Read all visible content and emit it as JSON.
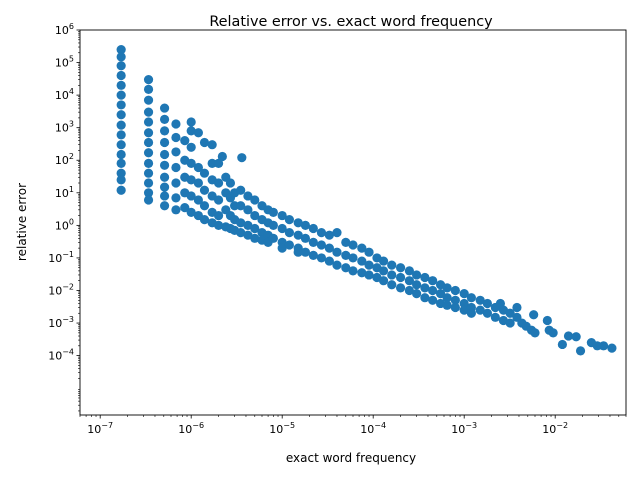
{
  "chart_data": {
    "type": "scatter",
    "title": "Relative error vs. exact word frequency",
    "xlabel": "exact word frequency",
    "ylabel": "relative error",
    "xscale": "log",
    "yscale": "log",
    "xlim": [
      6e-08,
      0.06
    ],
    "ylim": [
      1.5e-06,
      1000000.0
    ],
    "grid": false,
    "marker_color": "#1f77b4",
    "x_ticks": [
      {
        "value": 1e-07,
        "base": "10",
        "exp": "−7"
      },
      {
        "value": 1e-06,
        "base": "10",
        "exp": "−6"
      },
      {
        "value": 1e-05,
        "base": "10",
        "exp": "−5"
      },
      {
        "value": 0.0001,
        "base": "10",
        "exp": "−4"
      },
      {
        "value": 0.001,
        "base": "10",
        "exp": "−3"
      },
      {
        "value": 0.01,
        "base": "10",
        "exp": "−2"
      }
    ],
    "y_ticks": [
      {
        "value": 0.0001,
        "base": "10",
        "exp": "−4"
      },
      {
        "value": 0.001,
        "base": "10",
        "exp": "−3"
      },
      {
        "value": 0.01,
        "base": "10",
        "exp": "−2"
      },
      {
        "value": 0.1,
        "base": "10",
        "exp": "−1"
      },
      {
        "value": 1.0,
        "base": "10",
        "exp": "0"
      },
      {
        "value": 10.0,
        "base": "10",
        "exp": "1"
      },
      {
        "value": 100.0,
        "base": "10",
        "exp": "2"
      },
      {
        "value": 1000.0,
        "base": "10",
        "exp": "3"
      },
      {
        "value": 10000.0,
        "base": "10",
        "exp": "4"
      },
      {
        "value": 100000.0,
        "base": "10",
        "exp": "5"
      },
      {
        "value": 1000000.0,
        "base": "10",
        "exp": "6"
      }
    ],
    "points": [
      [
        1.7e-07,
        250000.0
      ],
      [
        1.7e-07,
        150000.0
      ],
      [
        1.7e-07,
        80000.0
      ],
      [
        1.7e-07,
        40000.0
      ],
      [
        1.7e-07,
        20000.0
      ],
      [
        1.7e-07,
        10000.0
      ],
      [
        1.7e-07,
        5000.0
      ],
      [
        1.7e-07,
        2500.0
      ],
      [
        1.7e-07,
        1200.0
      ],
      [
        1.7e-07,
        600
      ],
      [
        1.7e-07,
        300
      ],
      [
        1.7e-07,
        150
      ],
      [
        1.7e-07,
        80
      ],
      [
        1.7e-07,
        40
      ],
      [
        1.7e-07,
        25
      ],
      [
        1.7e-07,
        12
      ],
      [
        3.4e-07,
        30000.0
      ],
      [
        3.4e-07,
        15000.0
      ],
      [
        3.4e-07,
        7000.0
      ],
      [
        3.4e-07,
        3000.0
      ],
      [
        3.4e-07,
        1500.0
      ],
      [
        3.4e-07,
        700
      ],
      [
        3.4e-07,
        350
      ],
      [
        3.4e-07,
        170
      ],
      [
        3.4e-07,
        80
      ],
      [
        3.4e-07,
        40
      ],
      [
        3.4e-07,
        20
      ],
      [
        3.4e-07,
        10
      ],
      [
        3.4e-07,
        6
      ],
      [
        5.1e-07,
        4000.0
      ],
      [
        5.1e-07,
        1800.0
      ],
      [
        5.1e-07,
        800
      ],
      [
        5.1e-07,
        350
      ],
      [
        5.1e-07,
        150
      ],
      [
        5.1e-07,
        70
      ],
      [
        5.1e-07,
        30
      ],
      [
        5.1e-07,
        15
      ],
      [
        5.1e-07,
        8
      ],
      [
        5.1e-07,
        4
      ],
      [
        6.8e-07,
        1300.0
      ],
      [
        6.8e-07,
        500
      ],
      [
        6.8e-07,
        180
      ],
      [
        6.8e-07,
        60
      ],
      [
        6.8e-07,
        20
      ],
      [
        6.8e-07,
        7
      ],
      [
        6.8e-07,
        3
      ],
      [
        8.5e-07,
        400
      ],
      [
        8.5e-07,
        100
      ],
      [
        8.5e-07,
        30
      ],
      [
        8.5e-07,
        10
      ],
      [
        8.5e-07,
        3.5
      ],
      [
        1e-06,
        1500.0
      ],
      [
        1e-06,
        800
      ],
      [
        1e-06,
        250
      ],
      [
        1e-06,
        80
      ],
      [
        1e-06,
        25
      ],
      [
        1e-06,
        8
      ],
      [
        1e-06,
        2.5
      ],
      [
        1.2e-06,
        700
      ],
      [
        1.2e-06,
        60
      ],
      [
        1.2e-06,
        20
      ],
      [
        1.2e-06,
        6
      ],
      [
        1.2e-06,
        2
      ],
      [
        1.4e-06,
        350
      ],
      [
        1.4e-06,
        40
      ],
      [
        1.4e-06,
        12
      ],
      [
        1.4e-06,
        4
      ],
      [
        1.4e-06,
        1.5
      ],
      [
        1.7e-06,
        300
      ],
      [
        1.7e-06,
        80
      ],
      [
        1.7e-06,
        25
      ],
      [
        1.7e-06,
        8
      ],
      [
        1.7e-06,
        2.5
      ],
      [
        1.7e-06,
        1.2
      ],
      [
        2e-06,
        80
      ],
      [
        2e-06,
        20
      ],
      [
        2e-06,
        6
      ],
      [
        2e-06,
        2
      ],
      [
        2e-06,
        1
      ],
      [
        2.2e-06,
        130
      ],
      [
        2.4e-06,
        30
      ],
      [
        2.4e-06,
        10
      ],
      [
        2.4e-06,
        3
      ],
      [
        2.4e-06,
        0.9
      ],
      [
        2.7e-06,
        20
      ],
      [
        2.7e-06,
        7
      ],
      [
        2.7e-06,
        2
      ],
      [
        2.7e-06,
        0.8
      ],
      [
        3e-06,
        10
      ],
      [
        3e-06,
        4
      ],
      [
        3e-06,
        1.5
      ],
      [
        3e-06,
        0.7
      ],
      [
        3.6e-06,
        120
      ],
      [
        3.5e-06,
        12
      ],
      [
        3.5e-06,
        4
      ],
      [
        3.5e-06,
        1.2
      ],
      [
        3.5e-06,
        0.6
      ],
      [
        4.2e-06,
        8
      ],
      [
        4.2e-06,
        3
      ],
      [
        4.2e-06,
        1
      ],
      [
        4.2e-06,
        0.5
      ],
      [
        5e-06,
        6
      ],
      [
        5e-06,
        2
      ],
      [
        5e-06,
        0.8
      ],
      [
        5e-06,
        0.4
      ],
      [
        6e-06,
        4
      ],
      [
        6e-06,
        1.5
      ],
      [
        6e-06,
        0.6
      ],
      [
        6e-06,
        0.35
      ],
      [
        7e-06,
        3
      ],
      [
        7e-06,
        1.2
      ],
      [
        7e-06,
        0.5
      ],
      [
        7e-06,
        0.3
      ],
      [
        8e-06,
        2.5
      ],
      [
        8e-06,
        1
      ],
      [
        8e-06,
        0.4
      ],
      [
        1e-05,
        2
      ],
      [
        1e-05,
        0.8
      ],
      [
        1e-05,
        0.3
      ],
      [
        1e-05,
        0.2
      ],
      [
        1.2e-05,
        1.5
      ],
      [
        1.2e-05,
        0.6
      ],
      [
        1.2e-05,
        0.25
      ],
      [
        1.5e-05,
        1.2
      ],
      [
        1.5e-05,
        0.5
      ],
      [
        1.5e-05,
        0.2
      ],
      [
        1.5e-05,
        0.15
      ],
      [
        1.8e-05,
        1
      ],
      [
        1.8e-05,
        0.4
      ],
      [
        1.8e-05,
        0.15
      ],
      [
        2.2e-05,
        0.8
      ],
      [
        2.2e-05,
        0.3
      ],
      [
        2.2e-05,
        0.12
      ],
      [
        2.7e-05,
        0.6
      ],
      [
        2.7e-05,
        0.25
      ],
      [
        2.7e-05,
        0.1
      ],
      [
        3.3e-05,
        0.5
      ],
      [
        3.3e-05,
        0.2
      ],
      [
        3.3e-05,
        0.08
      ],
      [
        4e-05,
        0.6
      ],
      [
        4e-05,
        0.15
      ],
      [
        4e-05,
        0.06
      ],
      [
        5e-05,
        0.3
      ],
      [
        5e-05,
        0.12
      ],
      [
        5e-05,
        0.05
      ],
      [
        6e-05,
        0.25
      ],
      [
        6e-05,
        0.1
      ],
      [
        6e-05,
        0.04
      ],
      [
        7.5e-05,
        0.2
      ],
      [
        7.5e-05,
        0.08
      ],
      [
        7.5e-05,
        0.035
      ],
      [
        9e-05,
        0.15
      ],
      [
        9e-05,
        0.06
      ],
      [
        9e-05,
        0.03
      ],
      [
        0.00011,
        0.1
      ],
      [
        0.00011,
        0.05
      ],
      [
        0.00011,
        0.025
      ],
      [
        0.00013,
        0.08
      ],
      [
        0.00013,
        0.04
      ],
      [
        0.00013,
        0.02
      ],
      [
        0.00016,
        0.06
      ],
      [
        0.00016,
        0.03
      ],
      [
        0.00016,
        0.015
      ],
      [
        0.0002,
        0.05
      ],
      [
        0.0002,
        0.025
      ],
      [
        0.0002,
        0.012
      ],
      [
        0.00025,
        0.04
      ],
      [
        0.00025,
        0.02
      ],
      [
        0.00025,
        0.01
      ],
      [
        0.0003,
        0.03
      ],
      [
        0.0003,
        0.015
      ],
      [
        0.0003,
        0.008
      ],
      [
        0.00037,
        0.025
      ],
      [
        0.00037,
        0.012
      ],
      [
        0.00037,
        0.006
      ],
      [
        0.00045,
        0.02
      ],
      [
        0.00045,
        0.01
      ],
      [
        0.00045,
        0.005
      ],
      [
        0.00055,
        0.015
      ],
      [
        0.00055,
        0.008
      ],
      [
        0.00055,
        0.004
      ],
      [
        0.00065,
        0.012
      ],
      [
        0.00065,
        0.006
      ],
      [
        0.00065,
        0.0035
      ],
      [
        0.0008,
        0.01
      ],
      [
        0.0008,
        0.005
      ],
      [
        0.0008,
        0.003
      ],
      [
        0.001,
        0.008
      ],
      [
        0.001,
        0.004
      ],
      [
        0.001,
        0.0025
      ],
      [
        0.0012,
        0.006
      ],
      [
        0.0012,
        0.003
      ],
      [
        0.0012,
        0.002
      ],
      [
        0.0015,
        0.005
      ],
      [
        0.0015,
        0.0025
      ],
      [
        0.0018,
        0.004
      ],
      [
        0.0018,
        0.002
      ],
      [
        0.0022,
        0.003
      ],
      [
        0.0022,
        0.0015
      ],
      [
        0.0025,
        0.004
      ],
      [
        0.0027,
        0.0025
      ],
      [
        0.0027,
        0.0012
      ],
      [
        0.0032,
        0.002
      ],
      [
        0.0032,
        0.001
      ],
      [
        0.0038,
        0.003
      ],
      [
        0.0038,
        0.0015
      ],
      [
        0.0043,
        0.001
      ],
      [
        0.0048,
        0.0008
      ],
      [
        0.0055,
        0.0006
      ],
      [
        0.0058,
        0.0018
      ],
      [
        0.006,
        0.0005
      ],
      [
        0.0082,
        0.0012
      ],
      [
        0.0086,
        0.0006
      ],
      [
        0.0095,
        0.0005
      ],
      [
        0.012,
        0.00022
      ],
      [
        0.014,
        0.0004
      ],
      [
        0.017,
        0.00038
      ],
      [
        0.019,
        0.00014
      ],
      [
        0.025,
        0.00025
      ],
      [
        0.029,
        0.0002
      ],
      [
        0.034,
        0.0002
      ],
      [
        0.042,
        0.00017
      ]
    ]
  }
}
